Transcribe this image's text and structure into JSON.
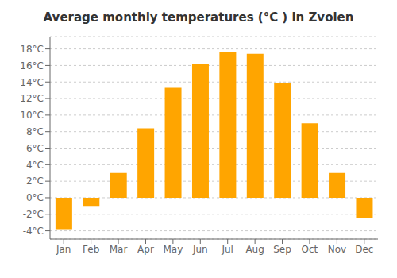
{
  "chart_data": {
    "type": "bar",
    "title": "Average monthly temperatures (°C ) in Zvolen",
    "categories": [
      "Jan",
      "Feb",
      "Mar",
      "Apr",
      "May",
      "Jun",
      "Jul",
      "Aug",
      "Sep",
      "Oct",
      "Nov",
      "Dec"
    ],
    "values": [
      -3.8,
      -1.0,
      3.0,
      8.4,
      13.3,
      16.2,
      17.6,
      17.4,
      13.9,
      9.0,
      3.0,
      -2.4
    ],
    "color": "#FFA500",
    "ylim": [
      -5,
      19.5
    ],
    "yticks": [
      {
        "value": -4,
        "label": "-4°C"
      },
      {
        "value": -2,
        "label": "-2°C"
      },
      {
        "value": 0,
        "label": "0°C"
      },
      {
        "value": 2,
        "label": "2°C"
      },
      {
        "value": 4,
        "label": "4°C"
      },
      {
        "value": 6,
        "label": "6°C"
      },
      {
        "value": 8,
        "label": "8°C"
      },
      {
        "value": 10,
        "label": "10°C"
      },
      {
        "value": 12,
        "label": "12°C"
      },
      {
        "value": 14,
        "label": "14°C"
      },
      {
        "value": 16,
        "label": "16°C"
      },
      {
        "value": 18,
        "label": "18°C"
      }
    ],
    "grid": true
  }
}
